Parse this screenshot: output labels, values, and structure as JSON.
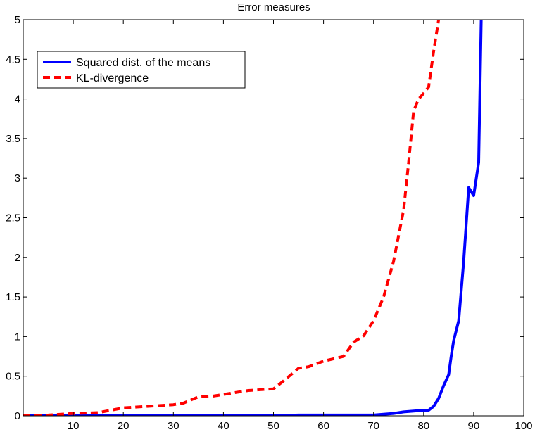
{
  "chart_data": {
    "type": "line",
    "title": "Error measures",
    "xlabel": "",
    "ylabel": "",
    "xlim": [
      0,
      100
    ],
    "ylim": [
      0,
      5
    ],
    "x_ticks": [
      10,
      20,
      30,
      40,
      50,
      60,
      70,
      80,
      90,
      100
    ],
    "y_ticks": [
      0,
      0.5,
      1,
      1.5,
      2,
      2.5,
      3,
      3.5,
      4,
      4.5,
      5
    ],
    "y_tick_labels": [
      "0",
      "0.5",
      "1",
      "1.5",
      "2",
      "2.5",
      "3",
      "3.5",
      "4",
      "4.5",
      "5"
    ],
    "grid": false,
    "legend_position": "top-left",
    "series": [
      {
        "name": "Squared dist. of the means",
        "color": "#0000ff",
        "style": "solid",
        "points": [
          [
            0,
            0
          ],
          [
            10,
            0
          ],
          [
            20,
            0
          ],
          [
            30,
            0
          ],
          [
            40,
            0
          ],
          [
            50,
            0
          ],
          [
            55,
            0.01
          ],
          [
            60,
            0.01
          ],
          [
            65,
            0.01
          ],
          [
            70,
            0.01
          ],
          [
            72,
            0.02
          ],
          [
            74,
            0.03
          ],
          [
            76,
            0.05
          ],
          [
            78,
            0.06
          ],
          [
            80,
            0.07
          ],
          [
            81,
            0.07
          ],
          [
            82,
            0.12
          ],
          [
            83,
            0.22
          ],
          [
            84,
            0.38
          ],
          [
            85,
            0.52
          ],
          [
            85.5,
            0.75
          ],
          [
            86,
            0.95
          ],
          [
            87,
            1.2
          ],
          [
            88,
            1.95
          ],
          [
            89,
            2.88
          ],
          [
            90,
            2.78
          ],
          [
            91,
            3.2
          ],
          [
            91.5,
            5.0
          ]
        ]
      },
      {
        "name": "KL-divergence",
        "color": "#ff0000",
        "style": "dashed",
        "points": [
          [
            0,
            0
          ],
          [
            5,
            0.01
          ],
          [
            10,
            0.03
          ],
          [
            15,
            0.04
          ],
          [
            20,
            0.1
          ],
          [
            25,
            0.12
          ],
          [
            30,
            0.14
          ],
          [
            32,
            0.16
          ],
          [
            35,
            0.24
          ],
          [
            38,
            0.25
          ],
          [
            40,
            0.27
          ],
          [
            45,
            0.32
          ],
          [
            50,
            0.34
          ],
          [
            52,
            0.44
          ],
          [
            55,
            0.6
          ],
          [
            57,
            0.62
          ],
          [
            60,
            0.69
          ],
          [
            64,
            0.75
          ],
          [
            66,
            0.93
          ],
          [
            68,
            1.01
          ],
          [
            70,
            1.2
          ],
          [
            72,
            1.5
          ],
          [
            74,
            1.95
          ],
          [
            76,
            2.6
          ],
          [
            77,
            3.2
          ],
          [
            78,
            3.85
          ],
          [
            79,
            4.0
          ],
          [
            80,
            4.07
          ],
          [
            81,
            4.15
          ],
          [
            82,
            4.6
          ],
          [
            83,
            5.0
          ]
        ]
      }
    ]
  }
}
